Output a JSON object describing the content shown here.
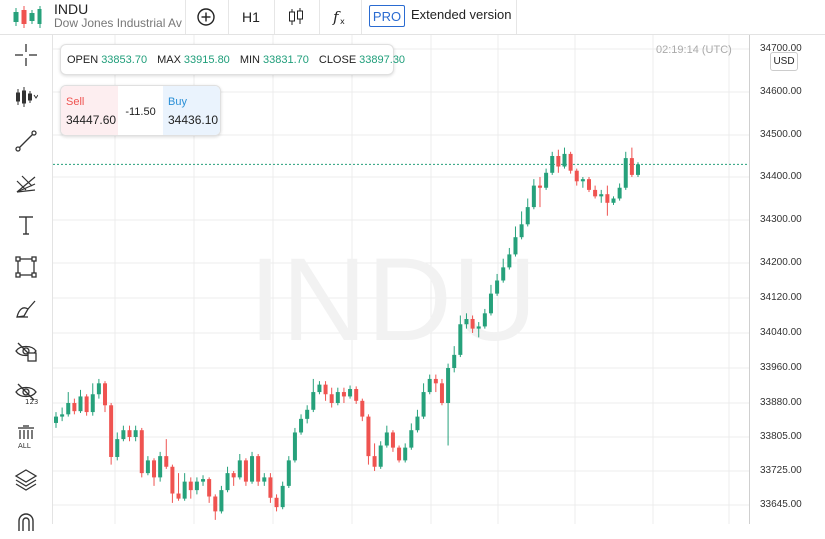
{
  "symbol": {
    "name": "INDU",
    "description": "Dow Jones Industrial Ave"
  },
  "toolbar": {
    "add_icon": "plus-circle-icon",
    "timeframe": "H1",
    "chart_type_icon": "candlestick-icon",
    "indicators_icon": "fx-icon",
    "pro_badge": "PRO",
    "pro_label": "Extended version"
  },
  "sidebar": {
    "tools": [
      "crosshair-icon",
      "candle-style-icon",
      "trend-line-icon",
      "fib-fan-icon",
      "text-icon",
      "rectangle-icon",
      "brush-icon",
      "hide-drawings-icon",
      "hide-indicators-icon",
      "delete-all-icon",
      "layers-icon",
      "magnet-icon"
    ]
  },
  "ohlc": {
    "open_label": "OPEN",
    "open": "33853.70",
    "max_label": "MAX",
    "max": "33915.80",
    "min_label": "MIN",
    "min": "33831.70",
    "close_label": "CLOSE",
    "close": "33897.30"
  },
  "trade": {
    "sell_label": "Sell",
    "sell_price": "34447.60",
    "spread": "-11.50",
    "buy_label": "Buy",
    "buy_price": "34436.10"
  },
  "clock": "02:19:14 (UTC)",
  "currency": "USD",
  "watermark": "INDU",
  "colors": {
    "up": "#26a17b",
    "down": "#ef5350",
    "accent": "#2a6bd1",
    "current_line": "#26a17b"
  },
  "chart_data": {
    "type": "candlestick",
    "y_ticks": [
      34700,
      34600,
      34500,
      34400,
      34300,
      34200,
      34120,
      34040,
      33960,
      33880,
      33805,
      33725,
      33645
    ],
    "y_tick_labels": [
      "34700.00",
      "34600.00",
      "34500.00",
      "34400.00",
      "34300.00",
      "34200.00",
      "34120.00",
      "34040.00",
      "33960.00",
      "33880.00",
      "33805.00",
      "33725.00",
      "33645.00"
    ],
    "current_price": 34430,
    "candles": [
      [
        33836,
        33850,
        33825,
        33860
      ],
      [
        33850,
        33855,
        33840,
        33870
      ],
      [
        33855,
        33880,
        33850,
        33905
      ],
      [
        33880,
        33862,
        33855,
        33890
      ],
      [
        33862,
        33895,
        33858,
        33910
      ],
      [
        33895,
        33860,
        33852,
        33900
      ],
      [
        33860,
        33900,
        33852,
        33925
      ],
      [
        33900,
        33925,
        33890,
        33935
      ],
      [
        33925,
        33875,
        33860,
        33930
      ],
      [
        33875,
        33758,
        33740,
        33880
      ],
      [
        33758,
        33800,
        33750,
        33815
      ],
      [
        33800,
        33820,
        33795,
        33830
      ],
      [
        33820,
        33805,
        33795,
        33830
      ],
      [
        33805,
        33820,
        33795,
        33830
      ],
      [
        33820,
        33720,
        33710,
        33825
      ],
      [
        33720,
        33750,
        33715,
        33760
      ],
      [
        33750,
        33710,
        33690,
        33755
      ],
      [
        33710,
        33760,
        33700,
        33770
      ],
      [
        33760,
        33735,
        33730,
        33800
      ],
      [
        33735,
        33672,
        33650,
        33740
      ],
      [
        33672,
        33660,
        33655,
        33720
      ],
      [
        33660,
        33700,
        33655,
        33720
      ],
      [
        33700,
        33680,
        33660,
        33710
      ],
      [
        33680,
        33700,
        33670,
        33710
      ],
      [
        33700,
        33706,
        33690,
        33715
      ],
      [
        33706,
        33665,
        33650,
        33710
      ],
      [
        33665,
        33630,
        33610,
        33670
      ],
      [
        33630,
        33680,
        33625,
        33690
      ],
      [
        33680,
        33720,
        33675,
        33735
      ],
      [
        33720,
        33710,
        33690,
        33725
      ],
      [
        33710,
        33750,
        33705,
        33765
      ],
      [
        33750,
        33700,
        33690,
        33755
      ],
      [
        33700,
        33760,
        33695,
        33770
      ],
      [
        33760,
        33700,
        33690,
        33765
      ],
      [
        33700,
        33710,
        33690,
        33720
      ],
      [
        33710,
        33662,
        33650,
        33720
      ],
      [
        33662,
        33640,
        33630,
        33670
      ],
      [
        33640,
        33690,
        33635,
        33700
      ],
      [
        33690,
        33750,
        33685,
        33760
      ],
      [
        33750,
        33815,
        33745,
        33825
      ],
      [
        33815,
        33845,
        33810,
        33855
      ],
      [
        33845,
        33865,
        33835,
        33875
      ],
      [
        33865,
        33905,
        33860,
        33935
      ],
      [
        33905,
        33922,
        33900,
        33930
      ],
      [
        33922,
        33900,
        33885,
        33930
      ],
      [
        33900,
        33880,
        33870,
        33915
      ],
      [
        33880,
        33905,
        33875,
        33915
      ],
      [
        33905,
        33895,
        33880,
        33915
      ],
      [
        33895,
        33912,
        33890,
        33920
      ],
      [
        33912,
        33885,
        33878,
        33918
      ],
      [
        33885,
        33850,
        33840,
        33890
      ],
      [
        33850,
        33760,
        33740,
        33855
      ],
      [
        33760,
        33735,
        33725,
        33790
      ],
      [
        33735,
        33785,
        33730,
        33795
      ],
      [
        33785,
        33815,
        33780,
        33830
      ],
      [
        33815,
        33780,
        33770,
        33820
      ],
      [
        33780,
        33750,
        33745,
        33785
      ],
      [
        33750,
        33780,
        33745,
        33790
      ],
      [
        33780,
        33820,
        33775,
        33835
      ],
      [
        33820,
        33850,
        33815,
        33865
      ],
      [
        33850,
        33905,
        33845,
        33925
      ],
      [
        33905,
        33935,
        33900,
        33945
      ],
      [
        33935,
        33925,
        33905,
        33945
      ],
      [
        33925,
        33880,
        33875,
        33935
      ],
      [
        33880,
        33960,
        33785,
        33970
      ],
      [
        33960,
        33990,
        33950,
        34010
      ],
      [
        33990,
        34060,
        33985,
        34080
      ],
      [
        34060,
        34072,
        34050,
        34085
      ],
      [
        34072,
        34050,
        34040,
        34080
      ],
      [
        34050,
        34055,
        34030,
        34065
      ],
      [
        34055,
        34085,
        34050,
        34095
      ],
      [
        34085,
        34130,
        34080,
        34150
      ],
      [
        34130,
        34160,
        34125,
        34175
      ],
      [
        34160,
        34190,
        34155,
        34210
      ],
      [
        34190,
        34220,
        34185,
        34235
      ],
      [
        34220,
        34260,
        34215,
        34285
      ],
      [
        34260,
        34290,
        34255,
        34320
      ],
      [
        34290,
        34330,
        34285,
        34350
      ],
      [
        34330,
        34380,
        34325,
        34395
      ],
      [
        34380,
        34375,
        34330,
        34400
      ],
      [
        34375,
        34410,
        34370,
        34420
      ],
      [
        34410,
        34450,
        34405,
        34460
      ],
      [
        34450,
        34425,
        34410,
        34465
      ],
      [
        34425,
        34455,
        34420,
        34470
      ],
      [
        34455,
        34415,
        34408,
        34460
      ],
      [
        34415,
        34390,
        34380,
        34420
      ],
      [
        34390,
        34395,
        34375,
        34400
      ],
      [
        34395,
        34370,
        34365,
        34400
      ],
      [
        34370,
        34355,
        34350,
        34380
      ],
      [
        34355,
        34360,
        34340,
        34370
      ],
      [
        34360,
        34340,
        34310,
        34380
      ],
      [
        34340,
        34350,
        34335,
        34355
      ],
      [
        34350,
        34375,
        34345,
        34385
      ],
      [
        34375,
        34445,
        34370,
        34460
      ],
      [
        34445,
        34405,
        34400,
        34470
      ],
      [
        34405,
        34430,
        34400,
        34435
      ]
    ]
  }
}
